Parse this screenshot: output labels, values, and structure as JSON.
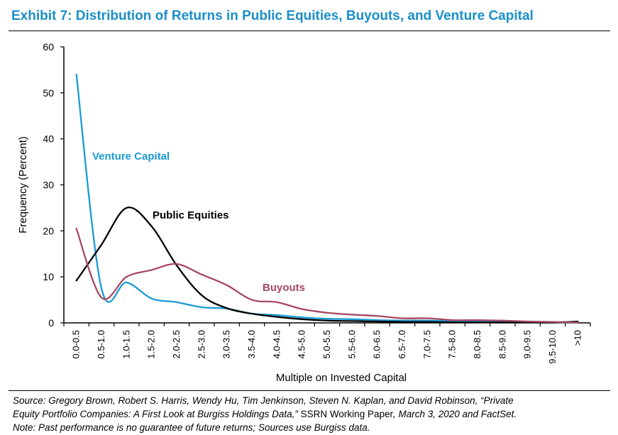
{
  "header": {
    "title": "Exhibit 7: Distribution of Returns in Public Equities, Buyouts, and Venture Capital"
  },
  "footer": {
    "source_part1": "Source: Gregory Brown, Robert S. Harris, Wendy Hu, Tim Jenkinson, Steven N. Kaplan, and David Robinson, “Private",
    "source_part2a": "Equity Portfolio Companies: A First Look at Burgiss Holdings Data,”",
    "source_part2b": " SSRN Working Paper",
    "source_part2c": ", March 3, 2020 and FactSet.",
    "note": "Note: Past performance is no guarantee of future returns; Sources use Burgiss data."
  },
  "chart_data": {
    "type": "line",
    "xlabel": "Multiple on Invested Capital",
    "ylabel": "Frequency (Percent)",
    "ylim": [
      0,
      60
    ],
    "yticks": [
      0,
      10,
      20,
      30,
      40,
      50,
      60
    ],
    "categories": [
      "0.0-0.5",
      "0.5-1.0",
      "1.0-1.5",
      "1.5-2.0",
      "2.0-2.5",
      "2.5-3.0",
      "3.0-3.5",
      "3.5-4.0",
      "4.0-4.5",
      "4.5-5.0",
      "5.0-5.5",
      "5.5-6.0",
      "6.0-6.5",
      "6.5-7.0",
      "7.0-7.5",
      "7.5-8.0",
      "8.0-8.5",
      "8.5-9.0",
      "9.0-9.5",
      "9.5-10.0",
      ">10"
    ],
    "grid": false,
    "series": [
      {
        "name": "Venture Capital",
        "color": "#1a9ad6",
        "values": [
          54,
          7.5,
          8.8,
          5.3,
          4.5,
          3.4,
          3.1,
          2.0,
          1.7,
          1.2,
          0.9,
          0.8,
          0.6,
          0.5,
          0.5,
          0.4,
          0.3,
          0.3,
          0.2,
          0.1,
          0.1
        ]
      },
      {
        "name": "Public Equities",
        "color": "#000000",
        "values": [
          9.2,
          17,
          25,
          21,
          12.5,
          6,
          3.2,
          2.0,
          1.3,
          0.8,
          0.5,
          0.4,
          0.3,
          0.2,
          0.2,
          0.1,
          0.1,
          0.1,
          0.1,
          0.1,
          0.3
        ]
      },
      {
        "name": "Buyouts",
        "color": "#a5485f",
        "values": [
          20.5,
          5.5,
          10,
          11.5,
          12.8,
          10.5,
          8.2,
          5.0,
          4.5,
          3.0,
          2.2,
          1.8,
          1.5,
          1.0,
          1.0,
          0.6,
          0.6,
          0.5,
          0.3,
          0.2,
          0.1
        ]
      }
    ]
  }
}
